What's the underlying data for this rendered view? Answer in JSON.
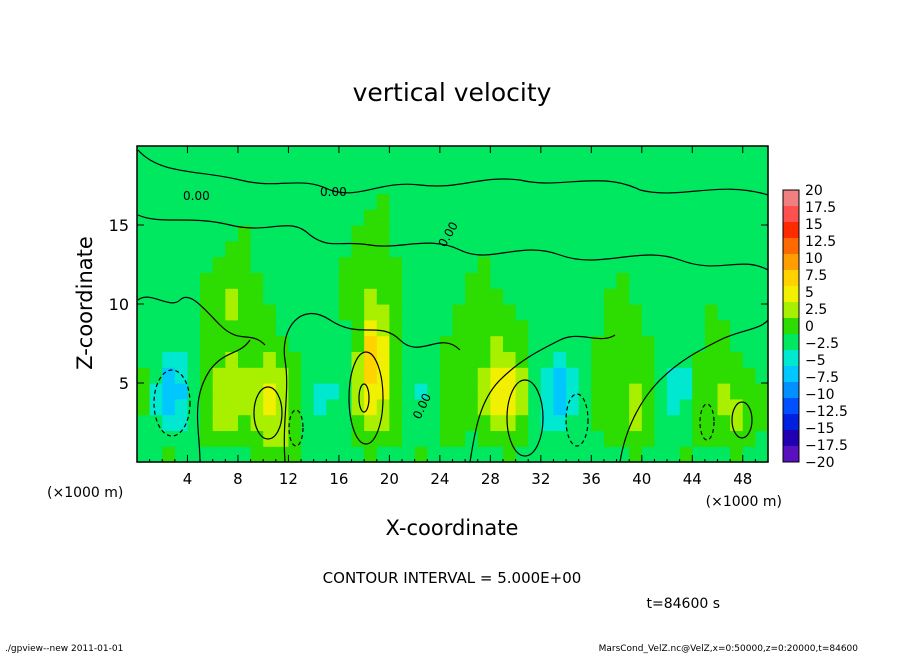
{
  "chart_data": {
    "type": "heatmap",
    "title": "vertical velocity",
    "xlabel": "X-coordinate",
    "ylabel": "Z-coordinate",
    "x_unit_label": "(×1000 m)",
    "x_unit_label_right": "(×1000 m)",
    "xlim": [
      0,
      50
    ],
    "ylim": [
      0,
      20
    ],
    "x_ticks": [
      4,
      8,
      12,
      16,
      20,
      24,
      28,
      32,
      36,
      40,
      44,
      48
    ],
    "y_ticks": [
      5,
      10,
      15
    ],
    "colorbar": {
      "levels": [
        20,
        17.5,
        15,
        12.5,
        10,
        7.5,
        5,
        2.5,
        0,
        -2.5,
        -5,
        -7.5,
        -10,
        -12.5,
        -15,
        -17.5,
        -20
      ],
      "labels": [
        "20",
        "17.5",
        "15",
        "12.5",
        "10",
        "7.5",
        "5",
        "2.5",
        "0",
        "−2.5",
        "−5",
        "−7.5",
        "−10",
        "−12.5",
        "−15",
        "−17.5",
        "−20"
      ],
      "colors": [
        "#f08080",
        "#ff5050",
        "#ff2a00",
        "#ff6a00",
        "#ff9e00",
        "#ffd200",
        "#f0f000",
        "#a8f000",
        "#2ddc00",
        "#00e860",
        "#00e8d0",
        "#00c8ff",
        "#0090ff",
        "#0050ff",
        "#0020e0",
        "#2000b0",
        "#5a10c0"
      ]
    },
    "contour_label": "0.00",
    "field": [
      [
        0,
        0,
        1,
        0,
        0,
        0,
        0,
        -1,
        0,
        1,
        1,
        1,
        1,
        0,
        0,
        -1,
        0,
        0,
        1,
        0,
        0,
        0,
        1,
        0,
        0,
        0,
        0,
        0,
        0,
        1,
        0,
        0,
        0,
        -1,
        0,
        0,
        0,
        0,
        0,
        1,
        0,
        -1,
        0,
        1,
        0,
        0,
        0,
        1,
        0,
        0
      ],
      [
        0,
        -1,
        -2,
        -1,
        0,
        1,
        2,
        2,
        1,
        2,
        3,
        3,
        2,
        0,
        -1,
        -1,
        0,
        1,
        2,
        2,
        1,
        0,
        0,
        0,
        1,
        1,
        0,
        1,
        2,
        2,
        1,
        0,
        -1,
        -2,
        -1,
        0,
        0,
        1,
        1,
        2,
        1,
        0,
        -1,
        0,
        1,
        1,
        1,
        2,
        1,
        0
      ],
      [
        0,
        -2,
        -4,
        -3,
        -1,
        2,
        3,
        3,
        2,
        3,
        5,
        4,
        2,
        0,
        -2,
        -1,
        0,
        2,
        4,
        3,
        1,
        -1,
        -1,
        0,
        1,
        2,
        1,
        2,
        4,
        4,
        2,
        0,
        -3,
        -3,
        -2,
        0,
        1,
        2,
        2,
        3,
        2,
        0,
        -2,
        -1,
        1,
        2,
        2,
        3,
        2,
        1
      ],
      [
        1,
        -3,
        -5,
        -4,
        -2,
        2,
        4,
        4,
        3,
        4,
        6,
        5,
        2,
        0,
        -3,
        -2,
        0,
        3,
        6,
        5,
        1,
        -2,
        -2,
        -1,
        1,
        2,
        2,
        3,
        6,
        6,
        3,
        0,
        -4,
        -5,
        -3,
        0,
        1,
        2,
        2,
        3,
        2,
        0,
        -3,
        -2,
        1,
        2,
        3,
        3,
        2,
        1
      ],
      [
        1,
        -3,
        -6,
        -5,
        -2,
        2,
        4,
        4,
        3,
        4,
        7,
        5,
        2,
        0,
        -3,
        -3,
        0,
        3,
        7,
        6,
        1,
        -2,
        -3,
        -1,
        1,
        2,
        2,
        3,
        7,
        7,
        4,
        0,
        -4,
        -6,
        -4,
        -1,
        1,
        2,
        2,
        3,
        2,
        0,
        -4,
        -3,
        1,
        2,
        3,
        2,
        1,
        1
      ],
      [
        1,
        -2,
        -5,
        -4,
        -2,
        2,
        3,
        4,
        3,
        3,
        5,
        4,
        1,
        0,
        -2,
        -2,
        0,
        3,
        8,
        7,
        1,
        -2,
        -2,
        -1,
        1,
        2,
        2,
        3,
        6,
        6,
        3,
        0,
        -3,
        -5,
        -4,
        -1,
        1,
        2,
        2,
        2,
        2,
        0,
        -3,
        -3,
        1,
        2,
        2,
        1,
        1,
        0
      ],
      [
        0,
        -1,
        -3,
        -3,
        -1,
        1,
        2,
        3,
        2,
        2,
        3,
        2,
        1,
        0,
        -1,
        -1,
        0,
        3,
        9,
        7,
        1,
        -1,
        -1,
        0,
        1,
        2,
        2,
        2,
        4,
        4,
        2,
        0,
        -2,
        -3,
        -2,
        0,
        1,
        1,
        1,
        2,
        1,
        0,
        -2,
        -2,
        1,
        1,
        1,
        1,
        0,
        0
      ],
      [
        0,
        -1,
        -2,
        -2,
        -1,
        1,
        2,
        2,
        2,
        2,
        2,
        1,
        0,
        0,
        -1,
        -1,
        0,
        2,
        8,
        6,
        1,
        -1,
        -1,
        0,
        1,
        1,
        1,
        2,
        3,
        2,
        1,
        0,
        -1,
        -2,
        -1,
        0,
        1,
        1,
        1,
        1,
        1,
        0,
        -1,
        -1,
        0,
        1,
        1,
        0,
        0,
        0
      ],
      [
        0,
        0,
        -1,
        -1,
        0,
        1,
        2,
        2,
        2,
        2,
        1,
        0,
        0,
        0,
        0,
        0,
        0,
        2,
        6,
        5,
        1,
        0,
        0,
        0,
        0,
        1,
        1,
        1,
        2,
        1,
        1,
        0,
        -1,
        -1,
        -1,
        0,
        0,
        1,
        1,
        1,
        0,
        0,
        -1,
        -1,
        0,
        1,
        1,
        0,
        0,
        0
      ],
      [
        0,
        0,
        0,
        0,
        0,
        1,
        2,
        3,
        2,
        1,
        1,
        0,
        0,
        0,
        0,
        0,
        1,
        2,
        4,
        3,
        1,
        0,
        0,
        0,
        0,
        1,
        1,
        1,
        1,
        1,
        0,
        0,
        0,
        -1,
        0,
        0,
        0,
        1,
        1,
        1,
        0,
        0,
        0,
        -1,
        0,
        1,
        0,
        0,
        0,
        0
      ],
      [
        0,
        0,
        0,
        0,
        0,
        1,
        2,
        3,
        2,
        1,
        0,
        0,
        0,
        0,
        0,
        0,
        1,
        2,
        3,
        2,
        1,
        0,
        0,
        0,
        0,
        0,
        1,
        1,
        1,
        0,
        0,
        0,
        0,
        0,
        0,
        0,
        0,
        1,
        1,
        0,
        0,
        0,
        0,
        0,
        0,
        0,
        0,
        0,
        0,
        0
      ],
      [
        0,
        0,
        0,
        0,
        0,
        1,
        1,
        2,
        1,
        1,
        0,
        0,
        0,
        0,
        0,
        0,
        1,
        2,
        2,
        2,
        1,
        0,
        0,
        0,
        0,
        0,
        1,
        1,
        0,
        0,
        0,
        0,
        0,
        0,
        0,
        0,
        0,
        0,
        1,
        0,
        0,
        0,
        0,
        0,
        0,
        0,
        0,
        0,
        0,
        0
      ],
      [
        0,
        0,
        0,
        0,
        0,
        0,
        1,
        1,
        1,
        0,
        0,
        0,
        0,
        0,
        0,
        0,
        1,
        1,
        2,
        1,
        1,
        0,
        0,
        0,
        0,
        0,
        0,
        1,
        0,
        0,
        0,
        0,
        0,
        0,
        0,
        0,
        0,
        0,
        0,
        0,
        0,
        0,
        0,
        0,
        0,
        0,
        0,
        0,
        0,
        0
      ],
      [
        0,
        0,
        0,
        0,
        0,
        0,
        0,
        1,
        1,
        0,
        0,
        0,
        0,
        0,
        0,
        0,
        0,
        1,
        1,
        1,
        0,
        0,
        0,
        0,
        0,
        0,
        0,
        0,
        0,
        0,
        0,
        0,
        0,
        0,
        0,
        0,
        0,
        0,
        0,
        0,
        0,
        0,
        0,
        0,
        0,
        0,
        0,
        0,
        0,
        0
      ],
      [
        0,
        0,
        0,
        0,
        0,
        0,
        0,
        0,
        1,
        0,
        0,
        0,
        0,
        0,
        0,
        0,
        0,
        1,
        1,
        1,
        0,
        0,
        0,
        0,
        0,
        0,
        0,
        0,
        0,
        0,
        0,
        0,
        0,
        0,
        0,
        0,
        0,
        0,
        0,
        0,
        0,
        0,
        0,
        0,
        0,
        0,
        0,
        0,
        0,
        0
      ],
      [
        0,
        0,
        0,
        0,
        0,
        0,
        0,
        0,
        0,
        0,
        0,
        0,
        0,
        0,
        0,
        0,
        0,
        0,
        1,
        1,
        0,
        0,
        0,
        0,
        0,
        0,
        0,
        0,
        0,
        0,
        0,
        0,
        0,
        0,
        0,
        0,
        0,
        0,
        0,
        0,
        0,
        0,
        0,
        0,
        0,
        0,
        0,
        0,
        0,
        0
      ],
      [
        0,
        0,
        0,
        0,
        0,
        0,
        0,
        0,
        0,
        0,
        0,
        0,
        0,
        0,
        0,
        0,
        0,
        0,
        0,
        1,
        0,
        0,
        0,
        0,
        0,
        0,
        0,
        0,
        0,
        0,
        0,
        0,
        0,
        0,
        0,
        0,
        0,
        0,
        0,
        0,
        0,
        0,
        0,
        0,
        0,
        0,
        0,
        0,
        0,
        0
      ],
      [
        0,
        0,
        0,
        0,
        0,
        0,
        0,
        0,
        0,
        0,
        0,
        0,
        0,
        0,
        0,
        0,
        0,
        0,
        0,
        0,
        0,
        0,
        0,
        0,
        0,
        0,
        0,
        0,
        0,
        0,
        0,
        0,
        0,
        0,
        0,
        0,
        0,
        0,
        0,
        0,
        0,
        0,
        0,
        0,
        0,
        0,
        0,
        0,
        0,
        0
      ],
      [
        0,
        0,
        0,
        0,
        0,
        0,
        0,
        0,
        0,
        0,
        0,
        0,
        0,
        0,
        0,
        0,
        0,
        0,
        0,
        0,
        0,
        0,
        0,
        0,
        0,
        0,
        0,
        0,
        0,
        0,
        0,
        0,
        0,
        0,
        0,
        0,
        0,
        0,
        0,
        0,
        0,
        0,
        0,
        0,
        0,
        0,
        0,
        0,
        0,
        0
      ],
      [
        0,
        0,
        0,
        0,
        0,
        0,
        0,
        0,
        0,
        0,
        0,
        0,
        0,
        0,
        0,
        0,
        0,
        0,
        0,
        0,
        0,
        0,
        0,
        0,
        0,
        0,
        0,
        0,
        0,
        0,
        0,
        0,
        0,
        0,
        0,
        0,
        0,
        0,
        0,
        0,
        0,
        0,
        0,
        0,
        0,
        0,
        0,
        0,
        0,
        0
      ]
    ]
  },
  "contour_interval": "CONTOUR INTERVAL = 5.000E+00",
  "time_label": "t=84600 s",
  "footer_left": "./gpview--new   2011-01-01",
  "footer_right": "MarsCond_VelZ.nc@VelZ,x=0:50000,z=0:20000,t=84600"
}
